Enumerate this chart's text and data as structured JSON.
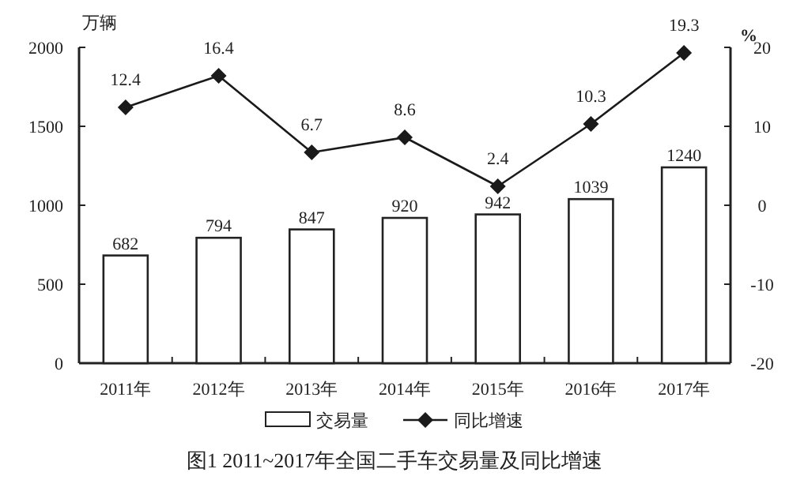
{
  "chart_data": {
    "type": "bar",
    "title": "图1 2011~2017年全国二手车交易量及同比增速",
    "categories": [
      "2011年",
      "2012年",
      "2013年",
      "2014年",
      "2015年",
      "2016年",
      "2017年"
    ],
    "series": [
      {
        "name": "交易量",
        "color": "#ffffff",
        "values": [
          682,
          794,
          847,
          920,
          942,
          1039,
          1240
        ]
      },
      {
        "name": "同比增速",
        "type": "line",
        "axis": "y2",
        "color": "#1a1a1a",
        "values": [
          12.4,
          16.4,
          6.7,
          8.6,
          2.4,
          10.3,
          19.3
        ]
      }
    ],
    "ylabel": "万辆",
    "y2label": "%",
    "ylim": [
      0,
      2000
    ],
    "yticks": [
      0,
      500,
      1000,
      1500,
      2000
    ],
    "y2lim": [
      -20,
      20
    ],
    "y2ticks": [
      -20,
      -10,
      0,
      10,
      20
    ],
    "data_labels": true,
    "marker": "diamond",
    "legend": "bottom"
  }
}
